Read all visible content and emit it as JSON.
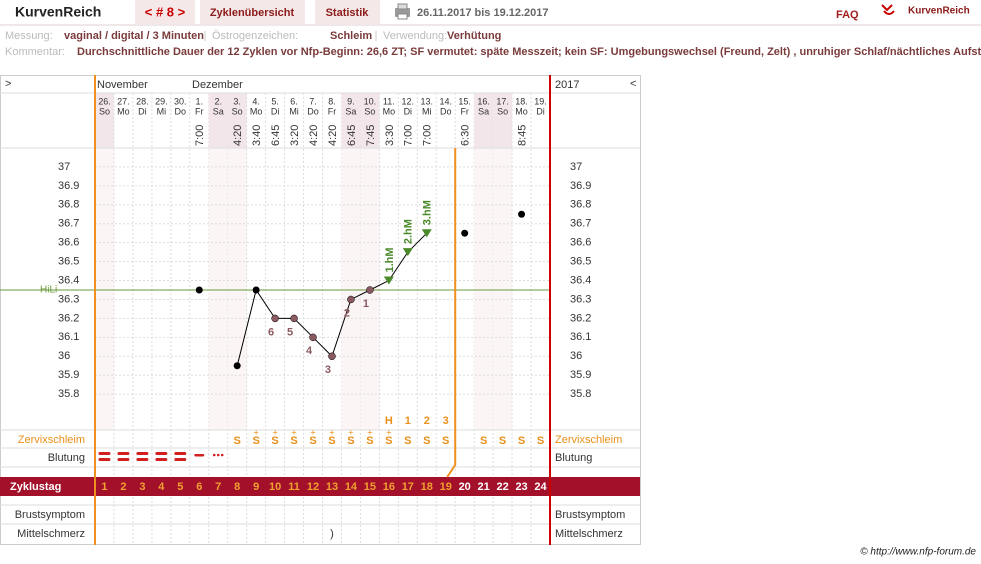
{
  "header": {
    "brand": "KurvenReich",
    "cycle_nav": "< # 8 >",
    "tabs": [
      "Zyklenübersicht",
      "Statistik"
    ],
    "date_range": "26.11.2017 bis 19.12.2017",
    "faq": "FAQ",
    "logo": "KurvenReich"
  },
  "info": {
    "measurement_label": "Messung:",
    "measurement": "vaginal / digital / 3 Minuten",
    "estrogen_label": "Östrogenzeichen:",
    "estrogen": "Schleim",
    "usage_label": "Verwendung:",
    "usage": "Verhütung",
    "comment_label": "Kommentar:",
    "comment": "Durchschnittliche Dauer der 12 Zyklen vor Nfp-Beginn: 26,6 ZT;   SF vermutet: späte Messzeit; kein SF: Umgebungswechsel (Freund, Zelt) , unruhiger Schlaf/nächtliches Aufstehen"
  },
  "nav": {
    "next": ">",
    "prev": "<",
    "months": [
      "November",
      "Dezember"
    ],
    "year": "2017"
  },
  "chart_data": {
    "type": "line",
    "categories": [
      "26.",
      "27.",
      "28.",
      "29.",
      "30.",
      "1.",
      "2.",
      "3.",
      "4.",
      "5.",
      "6.",
      "7.",
      "8.",
      "9.",
      "10.",
      "11.",
      "12.",
      "13.",
      "14.",
      "15.",
      "16.",
      "17.",
      "18.",
      "19."
    ],
    "weekdays": [
      "So",
      "Mo",
      "Di",
      "Mi",
      "Do",
      "Fr",
      "Sa",
      "So",
      "Mo",
      "Di",
      "Mi",
      "Do",
      "Fr",
      "Sa",
      "So",
      "Mo",
      "Di",
      "Mi",
      "Do",
      "Fr",
      "Sa",
      "So",
      "Mo",
      "Di"
    ],
    "times": [
      null,
      null,
      null,
      null,
      null,
      "7:00",
      null,
      "4:20",
      "3:40",
      "6:45",
      "3:20",
      "4:20",
      "4:20",
      "6:45",
      "7:45",
      "3:30",
      "7:00",
      "7:00",
      null,
      "6:30",
      null,
      null,
      "8:45",
      null
    ],
    "values": [
      null,
      null,
      null,
      null,
      null,
      36.35,
      null,
      35.95,
      36.35,
      36.2,
      36.2,
      36.1,
      36.0,
      36.3,
      36.35,
      36.4,
      36.55,
      36.65,
      null,
      36.65,
      null,
      null,
      36.75,
      null
    ],
    "count_labels": [
      null,
      null,
      null,
      null,
      null,
      null,
      null,
      null,
      null,
      "6",
      "5",
      "4",
      "3",
      "2",
      "1",
      null,
      null,
      null,
      null,
      null,
      null,
      null,
      null,
      null
    ],
    "high_labels": [
      null,
      null,
      null,
      null,
      null,
      null,
      null,
      null,
      null,
      null,
      null,
      null,
      null,
      null,
      null,
      "1.hM",
      "2.hM",
      "3.hM",
      null,
      null,
      null,
      null,
      null,
      null
    ],
    "color": "#000000",
    "ylim": [
      35.6,
      37.1
    ],
    "yticks": [
      35.8,
      35.9,
      36,
      36.1,
      36.2,
      36.3,
      36.4,
      36.5,
      36.6,
      36.7,
      36.8,
      36.9,
      37
    ],
    "hili": {
      "label": "HiLi",
      "value": 36.35
    },
    "grid": true
  },
  "rows": {
    "mucus_label": "Zervixschleim",
    "mucus_count": [
      null,
      null,
      null,
      null,
      null,
      null,
      null,
      null,
      null,
      null,
      null,
      null,
      null,
      null,
      null,
      "H",
      "1",
      "2",
      "3",
      null,
      null,
      null,
      null,
      null
    ],
    "mucus_plus": [
      null,
      null,
      null,
      null,
      null,
      null,
      null,
      null,
      "+",
      "+",
      "+",
      "+",
      "+",
      "+",
      "+",
      "+",
      null,
      null,
      null,
      null,
      null,
      null,
      null,
      null
    ],
    "mucus": [
      null,
      null,
      null,
      null,
      null,
      null,
      null,
      "S",
      "S",
      "S",
      "S",
      "S",
      "S",
      "S",
      "S",
      "S",
      "S",
      "S",
      "S",
      null,
      "S",
      "S",
      "S",
      "S"
    ],
    "bleeding_label": "Blutung",
    "cycle_day_label": "Zyklustag",
    "cycle_days": [
      1,
      2,
      3,
      4,
      5,
      6,
      7,
      8,
      9,
      10,
      11,
      12,
      13,
      14,
      15,
      16,
      17,
      18,
      19,
      20,
      21,
      22,
      23,
      24
    ],
    "breast_label": "Brustsymptom",
    "midpain_label": "Mittelschmerz",
    "midpain": [
      null,
      null,
      null,
      null,
      null,
      null,
      null,
      null,
      null,
      null,
      null,
      null,
      ")",
      null,
      null,
      null,
      null,
      null,
      null,
      null,
      null,
      null,
      null,
      null
    ]
  },
  "footer": "© http://www.nfp-forum.de"
}
